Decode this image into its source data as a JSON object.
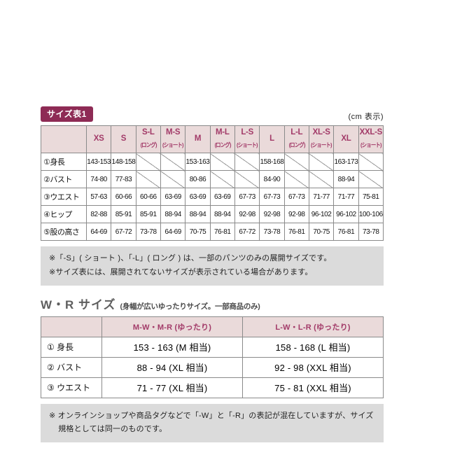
{
  "unit_label": "(cm 表示)",
  "table1": {
    "badge": "サイズ表1",
    "columns": [
      {
        "size": "XS",
        "sub": ""
      },
      {
        "size": "S",
        "sub": ""
      },
      {
        "size": "S-L",
        "sub": "(ロング)"
      },
      {
        "size": "M-S",
        "sub": "(ショート)"
      },
      {
        "size": "M",
        "sub": ""
      },
      {
        "size": "M-L",
        "sub": "(ロング)"
      },
      {
        "size": "L-S",
        "sub": "(ショート)"
      },
      {
        "size": "L",
        "sub": ""
      },
      {
        "size": "L-L",
        "sub": "(ロング)"
      },
      {
        "size": "XL-S",
        "sub": "(ショート)"
      },
      {
        "size": "XL",
        "sub": ""
      },
      {
        "size": "XXL-S",
        "sub": "(ショート)"
      }
    ],
    "rows": [
      {
        "label": "①身長",
        "values": [
          "143-153",
          "148-158",
          "",
          "",
          "153-163",
          "",
          "",
          "158-168",
          "",
          "",
          "163-173",
          ""
        ]
      },
      {
        "label": "②バスト",
        "values": [
          "74-80",
          "77-83",
          "",
          "",
          "80-86",
          "",
          "",
          "84-90",
          "",
          "",
          "88-94",
          ""
        ]
      },
      {
        "label": "③ウエスト",
        "values": [
          "57-63",
          "60-66",
          "60-66",
          "63-69",
          "63-69",
          "63-69",
          "67-73",
          "67-73",
          "67-73",
          "71-77",
          "71-77",
          "75-81"
        ]
      },
      {
        "label": "④ヒップ",
        "values": [
          "82-88",
          "85-91",
          "85-91",
          "88-94",
          "88-94",
          "88-94",
          "92-98",
          "92-98",
          "92-98",
          "96-102",
          "96-102",
          "100-106"
        ]
      },
      {
        "label": "⑤股の高さ",
        "values": [
          "64-69",
          "67-72",
          "73-78",
          "64-69",
          "70-75",
          "76-81",
          "67-72",
          "73-78",
          "76-81",
          "70-75",
          "76-81",
          "73-78"
        ]
      }
    ]
  },
  "note1": {
    "lines": [
      "※「-S」( ショート )、「-L」( ロング ) は、一部のパンツのみの展開サイズです。",
      "※サイズ表には、展開されてないサイズが表示されている場合があります。"
    ]
  },
  "wr": {
    "title": "W・R サイズ",
    "subtitle": "(身幅が広いゆったりサイズ。一部商品のみ)",
    "table": {
      "columns": [
        "M-W・M-R (ゆったり)",
        "L-W・L-R (ゆったり)"
      ],
      "rows": [
        {
          "label": "① 身長",
          "values": [
            "153 - 163 (M 相当)",
            "158 - 168 (L 相当)"
          ]
        },
        {
          "label": "② バスト",
          "values": [
            "88 - 94 (XL 相当)",
            "92 - 98 (XXL 相当)"
          ]
        },
        {
          "label": "③ ウエスト",
          "values": [
            "71 - 77 (XL 相当)",
            "75 - 81 (XXL 相当)"
          ]
        }
      ]
    }
  },
  "note2": "※ オンラインショップや商品タグなどで「-W」と「-R」の表記が混在していますが、サイズ規格としては同一のものです。",
  "colors": {
    "badge_bg": "#8e2b55",
    "header_bg": "#eadada",
    "header_text": "#a23a68",
    "note_bg": "#dbdbdb",
    "border": "#8a8a8a",
    "diagonal_line": "#9a9a9a"
  }
}
